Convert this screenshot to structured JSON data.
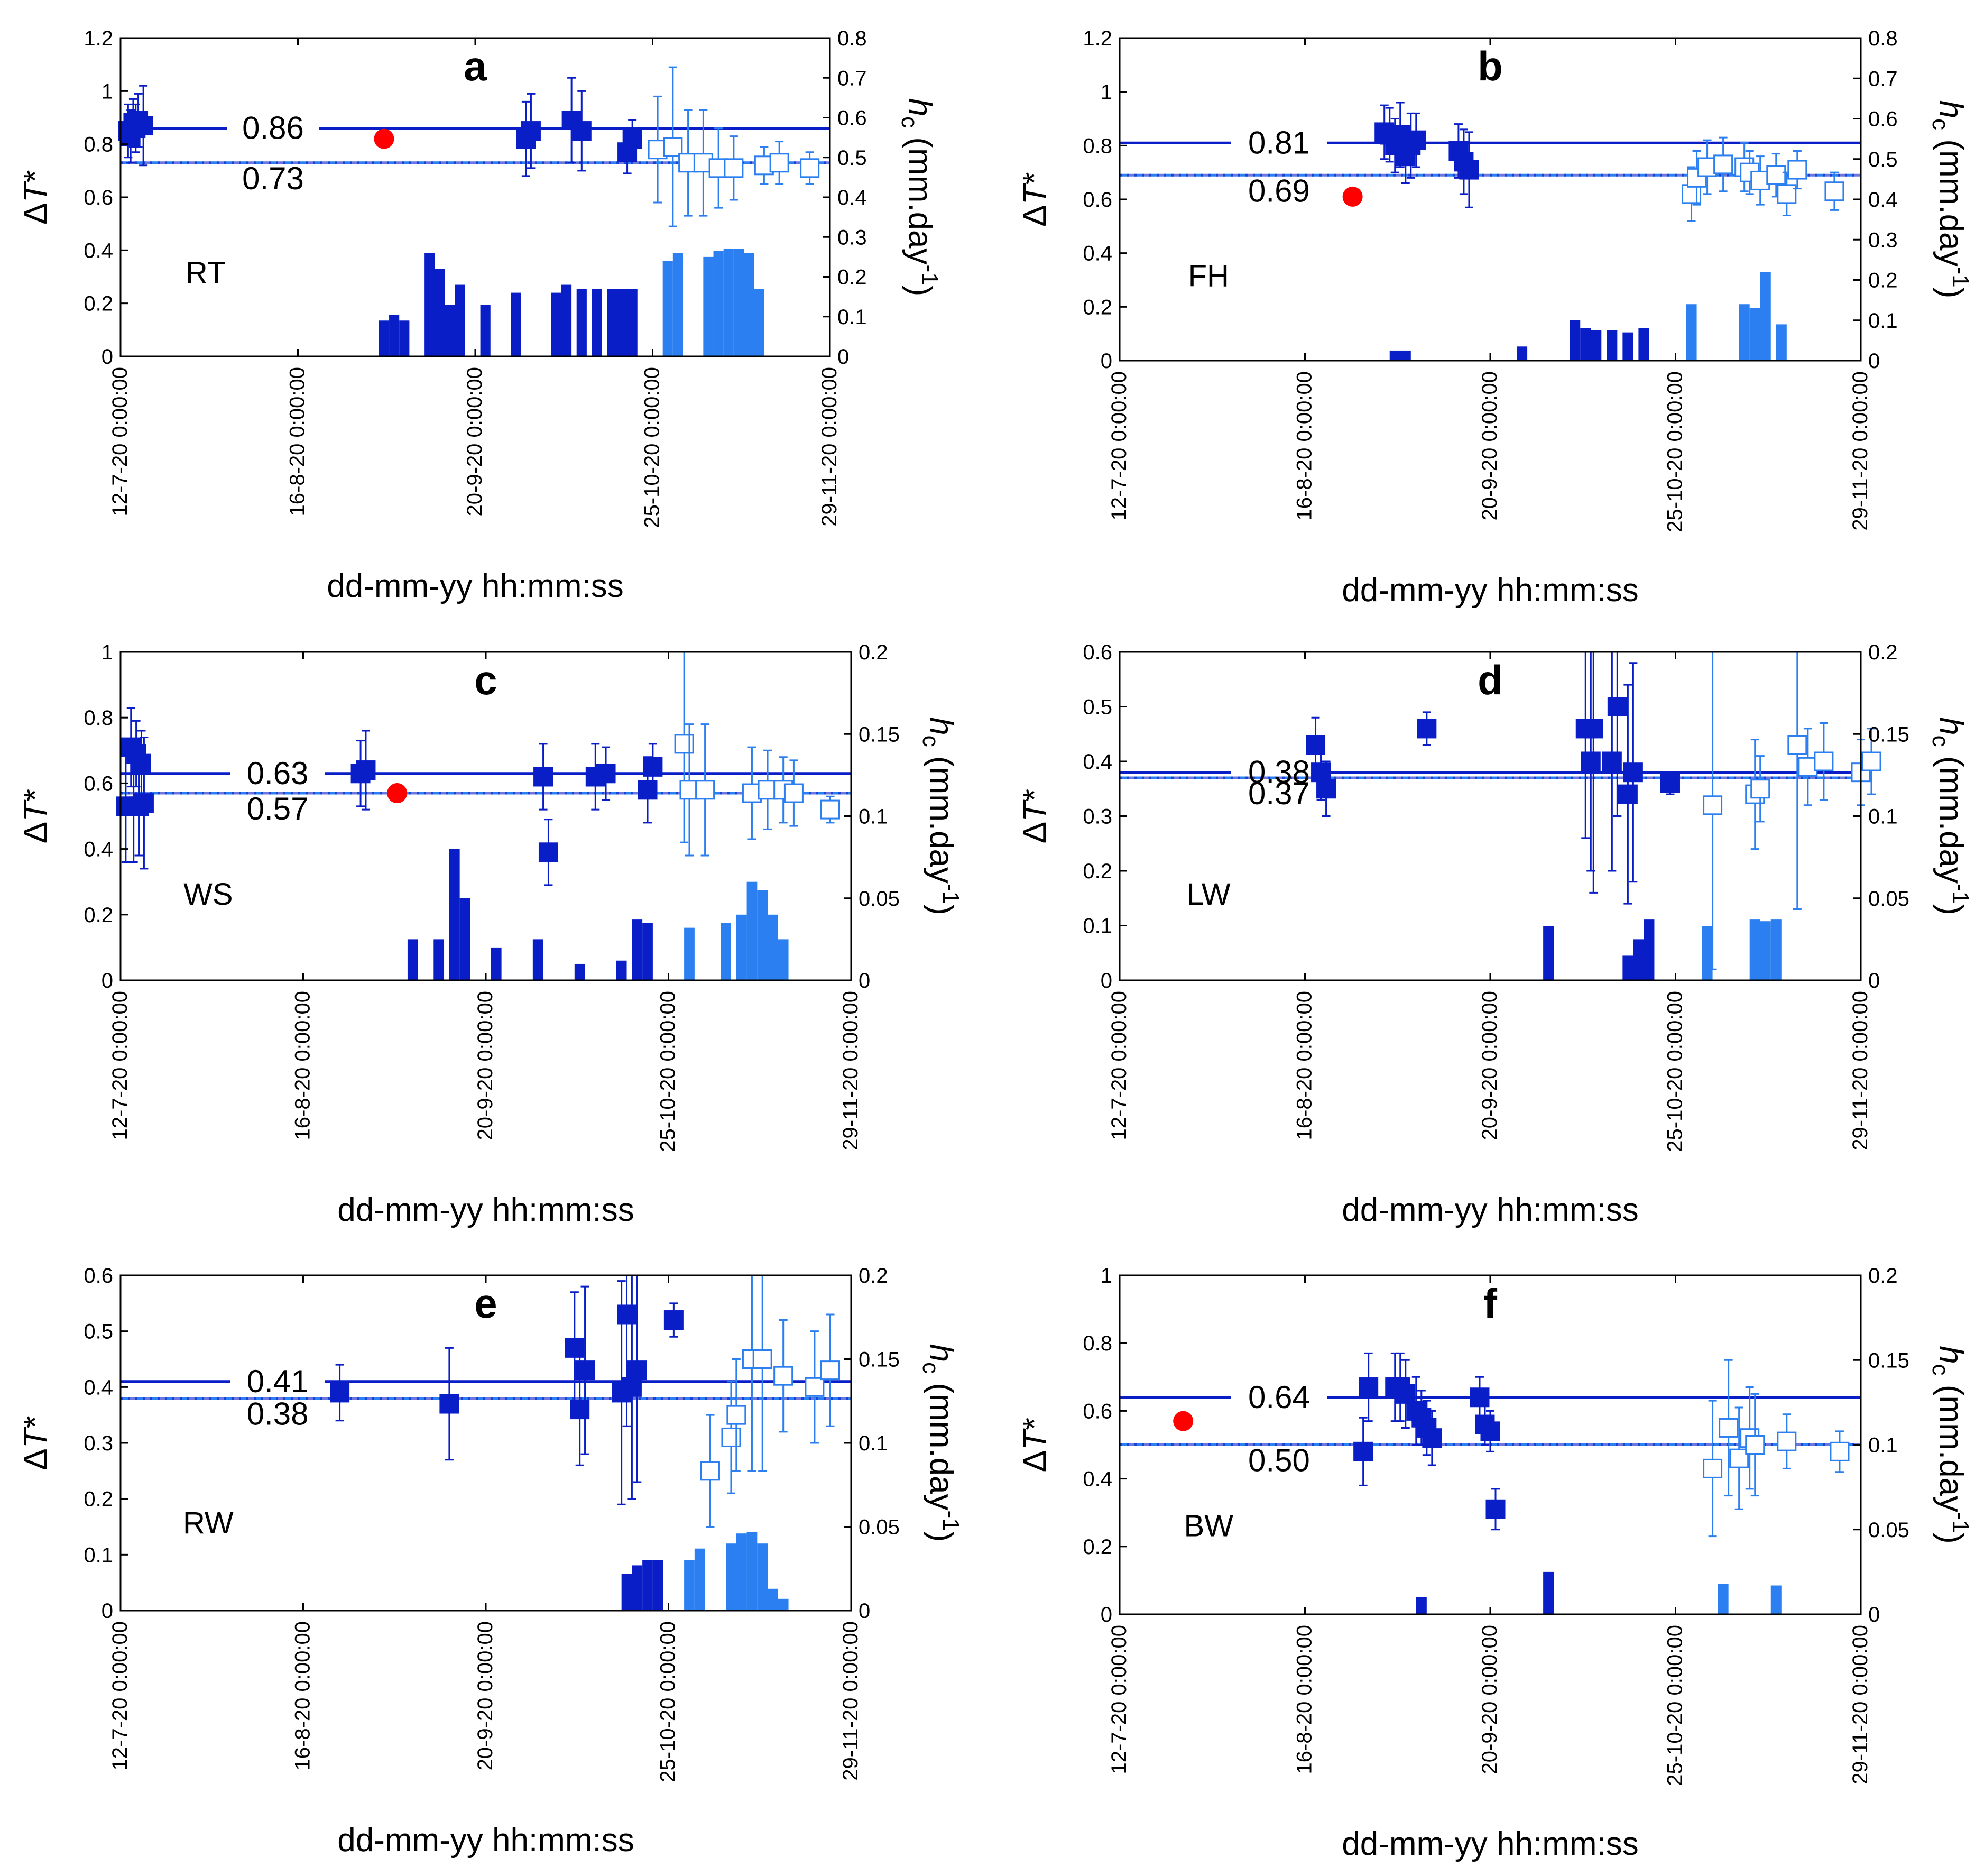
{
  "colors": {
    "dark": "#0a1ec8",
    "light": "#2b7ff0",
    "red": "#ff0000",
    "axis": "#000000"
  },
  "common": {
    "xlabel": "dd-mm-yy hh:mm:ss",
    "date_ticks": [
      "12-7-20 0:00:00",
      "16-8-20 0:00:00",
      "20-9-20 0:00:00",
      "25-10-20 0:00:00",
      "29-11-20 0:00:00"
    ],
    "date_tick_days": [
      0,
      35,
      70,
      105,
      140
    ],
    "ylabel_left": "ΔT*",
    "ylabel_right": "h_c (mm.day^-1)"
  },
  "chart_data": [
    {
      "type": "scatter",
      "letter": "a",
      "site": "RT",
      "xlim": [
        0,
        140
      ],
      "ylim": [
        0,
        1.2
      ],
      "yticks": [
        "0",
        "0.2",
        "0.4",
        "0.6",
        "0.8",
        "1",
        "1.2"
      ],
      "y2lim": [
        0,
        0.8
      ],
      "y2ticks": [
        "0",
        "0.1",
        "0.2",
        "0.3",
        "0.4",
        "0.5",
        "0.6",
        "0.7",
        "0.8"
      ],
      "mean_dark": {
        "value": 0.86,
        "label": "0.86"
      },
      "mean_light": {
        "value": 0.73,
        "label": "0.73"
      },
      "red_point": [
        52,
        0.82
      ],
      "dark_points": [
        [
          1.5,
          0.85,
          0.1
        ],
        [
          2,
          0.83,
          0.1
        ],
        [
          2.5,
          0.88,
          0.09
        ],
        [
          3,
          0.86,
          0.09
        ],
        [
          3.5,
          0.89,
          0.1
        ],
        [
          4.5,
          0.87,
          0.15
        ],
        [
          80,
          0.82,
          0.14
        ],
        [
          81,
          0.85,
          0.14
        ],
        [
          89,
          0.89,
          0.16
        ],
        [
          91,
          0.85,
          0.15
        ],
        [
          100,
          0.77,
          0.08
        ],
        [
          101,
          0.82,
          0.07
        ]
      ],
      "light_points": [
        [
          106,
          0.78,
          0.2
        ],
        [
          109,
          0.79,
          0.3
        ],
        [
          112,
          0.73,
          0.2
        ],
        [
          115,
          0.73,
          0.2
        ],
        [
          118,
          0.71,
          0.15
        ],
        [
          121,
          0.71,
          0.12
        ],
        [
          127,
          0.72,
          0.07
        ],
        [
          130,
          0.73,
          0.08
        ],
        [
          136,
          0.71,
          0.06
        ]
      ],
      "dark_bars": [
        [
          52,
          0.09
        ],
        [
          54,
          0.105
        ],
        [
          56,
          0.09
        ],
        [
          61,
          0.26
        ],
        [
          63,
          0.22
        ],
        [
          65,
          0.13
        ],
        [
          67,
          0.18
        ],
        [
          72,
          0.13
        ],
        [
          78,
          0.16
        ],
        [
          86,
          0.16
        ],
        [
          88,
          0.18
        ],
        [
          91,
          0.17
        ],
        [
          94,
          0.17
        ],
        [
          97,
          0.17
        ],
        [
          99,
          0.17
        ],
        [
          101,
          0.17
        ]
      ],
      "light_bars": [
        [
          108,
          0.24
        ],
        [
          110,
          0.26
        ],
        [
          116,
          0.25
        ],
        [
          118,
          0.265
        ],
        [
          120,
          0.27
        ],
        [
          122,
          0.27
        ],
        [
          124,
          0.26
        ],
        [
          126,
          0.17
        ]
      ]
    },
    {
      "type": "scatter",
      "letter": "b",
      "site": "FH",
      "xlim": [
        0,
        140
      ],
      "ylim": [
        0,
        1.2
      ],
      "yticks": [
        "0",
        "0.2",
        "0.4",
        "0.6",
        "0.8",
        "1",
        "1.2"
      ],
      "y2lim": [
        0,
        0.8
      ],
      "y2ticks": [
        "0",
        "0.1",
        "0.2",
        "0.3",
        "0.4",
        "0.5",
        "0.6",
        "0.7",
        "0.8"
      ],
      "mean_dark": {
        "value": 0.81,
        "label": "0.81"
      },
      "mean_light": {
        "value": 0.69,
        "label": "0.69"
      },
      "red_point": [
        44,
        0.61
      ],
      "dark_points": [
        [
          50,
          0.85,
          0.1
        ],
        [
          51,
          0.84,
          0.1
        ],
        [
          52,
          0.8,
          0.1
        ],
        [
          53,
          0.84,
          0.12
        ],
        [
          54,
          0.76,
          0.1
        ],
        [
          55,
          0.8,
          0.12
        ],
        [
          56,
          0.82,
          0.1
        ],
        [
          64,
          0.78,
          0.1
        ],
        [
          65,
          0.74,
          0.12
        ],
        [
          66,
          0.71,
          0.14
        ]
      ],
      "light_points": [
        [
          108,
          0.62,
          0.1
        ],
        [
          109,
          0.68,
          0.1
        ],
        [
          111,
          0.72,
          0.1
        ],
        [
          114,
          0.73,
          0.1
        ],
        [
          118,
          0.72,
          0.09
        ],
        [
          119,
          0.7,
          0.08
        ],
        [
          121,
          0.67,
          0.09
        ],
        [
          124,
          0.69,
          0.08
        ],
        [
          126,
          0.62,
          0.08
        ],
        [
          128,
          0.71,
          0.07
        ],
        [
          135,
          0.63,
          0.07
        ]
      ],
      "dark_bars": [
        [
          52,
          0.025
        ],
        [
          54,
          0.025
        ],
        [
          76,
          0.035
        ],
        [
          86,
          0.1
        ],
        [
          88,
          0.08
        ],
        [
          90,
          0.075
        ],
        [
          93,
          0.075
        ],
        [
          96,
          0.07
        ],
        [
          99,
          0.08
        ]
      ],
      "light_bars": [
        [
          108,
          0.14
        ],
        [
          118,
          0.14
        ],
        [
          120,
          0.13
        ],
        [
          122,
          0.22
        ],
        [
          125,
          0.09
        ]
      ]
    },
    {
      "type": "scatter",
      "letter": "c",
      "site": "WS",
      "xlim": [
        0,
        140
      ],
      "ylim": [
        0,
        1
      ],
      "yticks": [
        "0",
        "0.2",
        "0.4",
        "0.6",
        "0.8",
        "1"
      ],
      "y2lim": [
        0,
        0.2
      ],
      "y2ticks": [
        "0",
        "0.05",
        "0.1",
        "0.15",
        "0.2"
      ],
      "mean_dark": {
        "value": 0.63,
        "label": "0.63"
      },
      "mean_light": {
        "value": 0.57,
        "label": "0.57"
      },
      "red_point": [
        53,
        0.57
      ],
      "dark_points": [
        [
          1,
          0.53,
          0.17
        ],
        [
          2,
          0.71,
          0.12
        ],
        [
          2.5,
          0.53,
          0.17
        ],
        [
          3,
          0.69,
          0.1
        ],
        [
          3.5,
          0.53,
          0.15
        ],
        [
          4,
          0.66,
          0.1
        ],
        [
          4.5,
          0.54,
          0.2
        ],
        [
          46,
          0.63,
          0.1
        ],
        [
          47,
          0.64,
          0.12
        ],
        [
          81,
          0.62,
          0.1
        ],
        [
          82,
          0.39,
          0.1
        ],
        [
          91,
          0.62,
          0.1
        ],
        [
          93,
          0.63,
          0.08
        ],
        [
          101,
          0.58,
          0.1
        ],
        [
          102,
          0.65,
          0.07
        ]
      ],
      "light_points": [
        [
          108,
          0.72,
          0.3
        ],
        [
          109,
          0.58,
          0.2
        ],
        [
          112,
          0.58,
          0.2
        ],
        [
          121,
          0.57,
          0.14
        ],
        [
          124,
          0.58,
          0.12
        ],
        [
          127,
          0.58,
          0.1
        ],
        [
          129,
          0.57,
          0.1
        ],
        [
          136,
          0.52,
          0.04
        ]
      ],
      "dark_bars": [
        [
          56,
          0.025
        ],
        [
          61,
          0.025
        ],
        [
          64,
          0.08
        ],
        [
          66,
          0.05
        ],
        [
          72,
          0.02
        ],
        [
          80,
          0.025
        ],
        [
          88,
          0.01
        ],
        [
          96,
          0.012
        ],
        [
          99,
          0.037
        ],
        [
          101,
          0.035
        ]
      ],
      "light_bars": [
        [
          109,
          0.032
        ],
        [
          116,
          0.035
        ],
        [
          119,
          0.04
        ],
        [
          121,
          0.06
        ],
        [
          123,
          0.055
        ],
        [
          125,
          0.04
        ],
        [
          127,
          0.025
        ]
      ]
    },
    {
      "type": "scatter",
      "letter": "d",
      "site": "LW",
      "xlim": [
        0,
        140
      ],
      "ylim": [
        0,
        0.6
      ],
      "yticks": [
        "0",
        "0.1",
        "0.2",
        "0.3",
        "0.4",
        "0.5",
        "0.6"
      ],
      "y2lim": [
        0,
        0.2
      ],
      "y2ticks": [
        "0",
        "0.05",
        "0.1",
        "0.15",
        "0.2"
      ],
      "mean_dark": {
        "value": 0.38,
        "label": "0.38"
      },
      "mean_light": {
        "value": 0.37,
        "label": "0.37"
      },
      "red_point": null,
      "dark_points": [
        [
          37,
          0.43,
          0.05
        ],
        [
          38,
          0.38,
          0.05
        ],
        [
          39,
          0.35,
          0.05
        ],
        [
          58,
          0.46,
          0.03
        ],
        [
          88,
          0.46,
          0.2
        ],
        [
          89,
          0.4,
          0.2
        ],
        [
          89.5,
          0.46,
          0.3
        ],
        [
          93,
          0.4,
          0.2
        ],
        [
          94,
          0.5,
          0.2
        ],
        [
          96,
          0.34,
          0.2
        ],
        [
          97,
          0.38,
          0.2
        ],
        [
          104,
          0.36,
          0.02
        ]
      ],
      "light_points": [
        [
          112,
          0.32,
          0.3
        ],
        [
          120,
          0.34,
          0.1
        ],
        [
          121,
          0.35,
          0.06
        ],
        [
          128,
          0.43,
          0.3
        ],
        [
          130,
          0.39,
          0.07
        ],
        [
          133,
          0.4,
          0.07
        ],
        [
          140,
          0.38,
          0.06
        ],
        [
          142,
          0.4,
          0.06
        ]
      ],
      "dark_bars": [
        [
          81,
          0.033
        ],
        [
          96,
          0.015
        ],
        [
          98,
          0.025
        ],
        [
          100,
          0.037
        ]
      ],
      "light_bars": [
        [
          111,
          0.033
        ],
        [
          120,
          0.037
        ],
        [
          122,
          0.036
        ],
        [
          124,
          0.037
        ]
      ]
    },
    {
      "type": "scatter",
      "letter": "e",
      "site": "RW",
      "xlim": [
        0,
        140
      ],
      "ylim": [
        0,
        0.6
      ],
      "yticks": [
        "0",
        "0.1",
        "0.2",
        "0.3",
        "0.4",
        "0.5",
        "0.6"
      ],
      "y2lim": [
        0,
        0.2
      ],
      "y2ticks": [
        "0",
        "0.05",
        "0.1",
        "0.15",
        "0.2"
      ],
      "mean_dark": {
        "value": 0.41,
        "label": "0.41"
      },
      "mean_light": {
        "value": 0.38,
        "label": "0.38"
      },
      "red_point": null,
      "dark_points": [
        [
          42,
          0.39,
          0.05
        ],
        [
          63,
          0.37,
          0.1
        ],
        [
          87,
          0.47,
          0.1
        ],
        [
          88,
          0.36,
          0.1
        ],
        [
          89,
          0.43,
          0.15
        ],
        [
          96,
          0.39,
          0.2
        ],
        [
          97,
          0.53,
          0.2
        ],
        [
          98,
          0.4,
          0.2
        ],
        [
          99,
          0.43,
          0.2
        ],
        [
          106,
          0.52,
          0.03
        ]
      ],
      "light_points": [
        [
          113,
          0.25,
          0.1
        ],
        [
          117,
          0.31,
          0.1
        ],
        [
          118,
          0.35,
          0.1
        ],
        [
          121,
          0.45,
          0.2
        ],
        [
          123,
          0.45,
          0.2
        ],
        [
          127,
          0.42,
          0.1
        ],
        [
          133,
          0.4,
          0.1
        ],
        [
          136,
          0.43,
          0.1
        ]
      ],
      "dark_bars": [
        [
          97,
          0.022
        ],
        [
          99,
          0.027
        ],
        [
          101,
          0.03
        ],
        [
          103,
          0.03
        ]
      ],
      "light_bars": [
        [
          109,
          0.03
        ],
        [
          111,
          0.037
        ],
        [
          117,
          0.04
        ],
        [
          119,
          0.046
        ],
        [
          121,
          0.047
        ],
        [
          123,
          0.04
        ],
        [
          125,
          0.013
        ],
        [
          127,
          0.007
        ]
      ]
    },
    {
      "type": "scatter",
      "letter": "f",
      "site": "BW",
      "xlim": [
        0,
        140
      ],
      "ylim": [
        0,
        1
      ],
      "yticks": [
        "0",
        "0.2",
        "0.4",
        "0.6",
        "0.8",
        "1"
      ],
      "y2lim": [
        0,
        0.2
      ],
      "y2ticks": [
        "0",
        "0.05",
        "0.1",
        "0.15",
        "0.2"
      ],
      "mean_dark": {
        "value": 0.64,
        "label": "0.64"
      },
      "mean_light": {
        "value": 0.5,
        "label": "0.50"
      },
      "red_point": [
        12,
        0.57
      ],
      "dark_points": [
        [
          46,
          0.48,
          0.1
        ],
        [
          47,
          0.67,
          0.1
        ],
        [
          52,
          0.67,
          0.1
        ],
        [
          53,
          0.67,
          0.1
        ],
        [
          54,
          0.65,
          0.1
        ],
        [
          56,
          0.6,
          0.1
        ],
        [
          57,
          0.58,
          0.08
        ],
        [
          58,
          0.55,
          0.08
        ],
        [
          59,
          0.52,
          0.08
        ],
        [
          68,
          0.64,
          0.06
        ],
        [
          69,
          0.56,
          0.06
        ],
        [
          70,
          0.54,
          0.06
        ],
        [
          71,
          0.31,
          0.06
        ]
      ],
      "light_points": [
        [
          112,
          0.43,
          0.2
        ],
        [
          115,
          0.55,
          0.2
        ],
        [
          117,
          0.46,
          0.15
        ],
        [
          119,
          0.52,
          0.15
        ],
        [
          120,
          0.5,
          0.15
        ],
        [
          126,
          0.51,
          0.08
        ],
        [
          136,
          0.48,
          0.06
        ]
      ],
      "dark_bars": [
        [
          57,
          0.01
        ],
        [
          81,
          0.025
        ]
      ],
      "light_bars": [
        [
          114,
          0.018
        ],
        [
          124,
          0.017
        ]
      ]
    }
  ]
}
